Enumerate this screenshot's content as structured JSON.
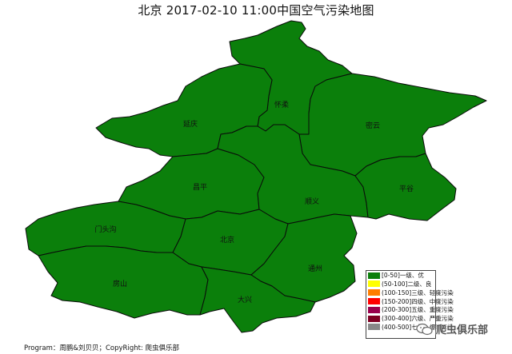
{
  "title": "北京 2017-02-10 11:00中国空气污染地图",
  "districts": [
    {
      "name": "怀柔",
      "aqi_class": "0-50"
    },
    {
      "name": "延庆",
      "aqi_class": "0-50"
    },
    {
      "name": "密云",
      "aqi_class": "0-50"
    },
    {
      "name": "昌平",
      "aqi_class": "0-50"
    },
    {
      "name": "顺义",
      "aqi_class": "0-50"
    },
    {
      "name": "平谷",
      "aqi_class": "0-50"
    },
    {
      "name": "门头沟",
      "aqi_class": "0-50"
    },
    {
      "name": "北京",
      "aqi_class": "0-50"
    },
    {
      "name": "通州",
      "aqi_class": "0-50"
    },
    {
      "name": "房山",
      "aqi_class": "0-50"
    },
    {
      "name": "大兴",
      "aqi_class": "0-50"
    }
  ],
  "legend": [
    {
      "label": "[0-50]一级、优",
      "color": "#0b7f0b"
    },
    {
      "label": "(50-100]二级、良",
      "color": "#ffff00"
    },
    {
      "label": "(100-150]三级、轻度污染",
      "color": "#ff7e00"
    },
    {
      "label": "(150-200]四级、中度污染",
      "color": "#ff0000"
    },
    {
      "label": "(200-300]五级、重度污染",
      "color": "#99004c"
    },
    {
      "label": "(300-400]六级、严重污染",
      "color": "#7e0023"
    },
    {
      "label": "(400-500]七级、爆表污染",
      "color": "#888888"
    }
  ],
  "footer": "Program：周鹏&刘贝贝；CopyRight: 爬虫俱乐部",
  "watermark": "爬虫俱乐部"
}
